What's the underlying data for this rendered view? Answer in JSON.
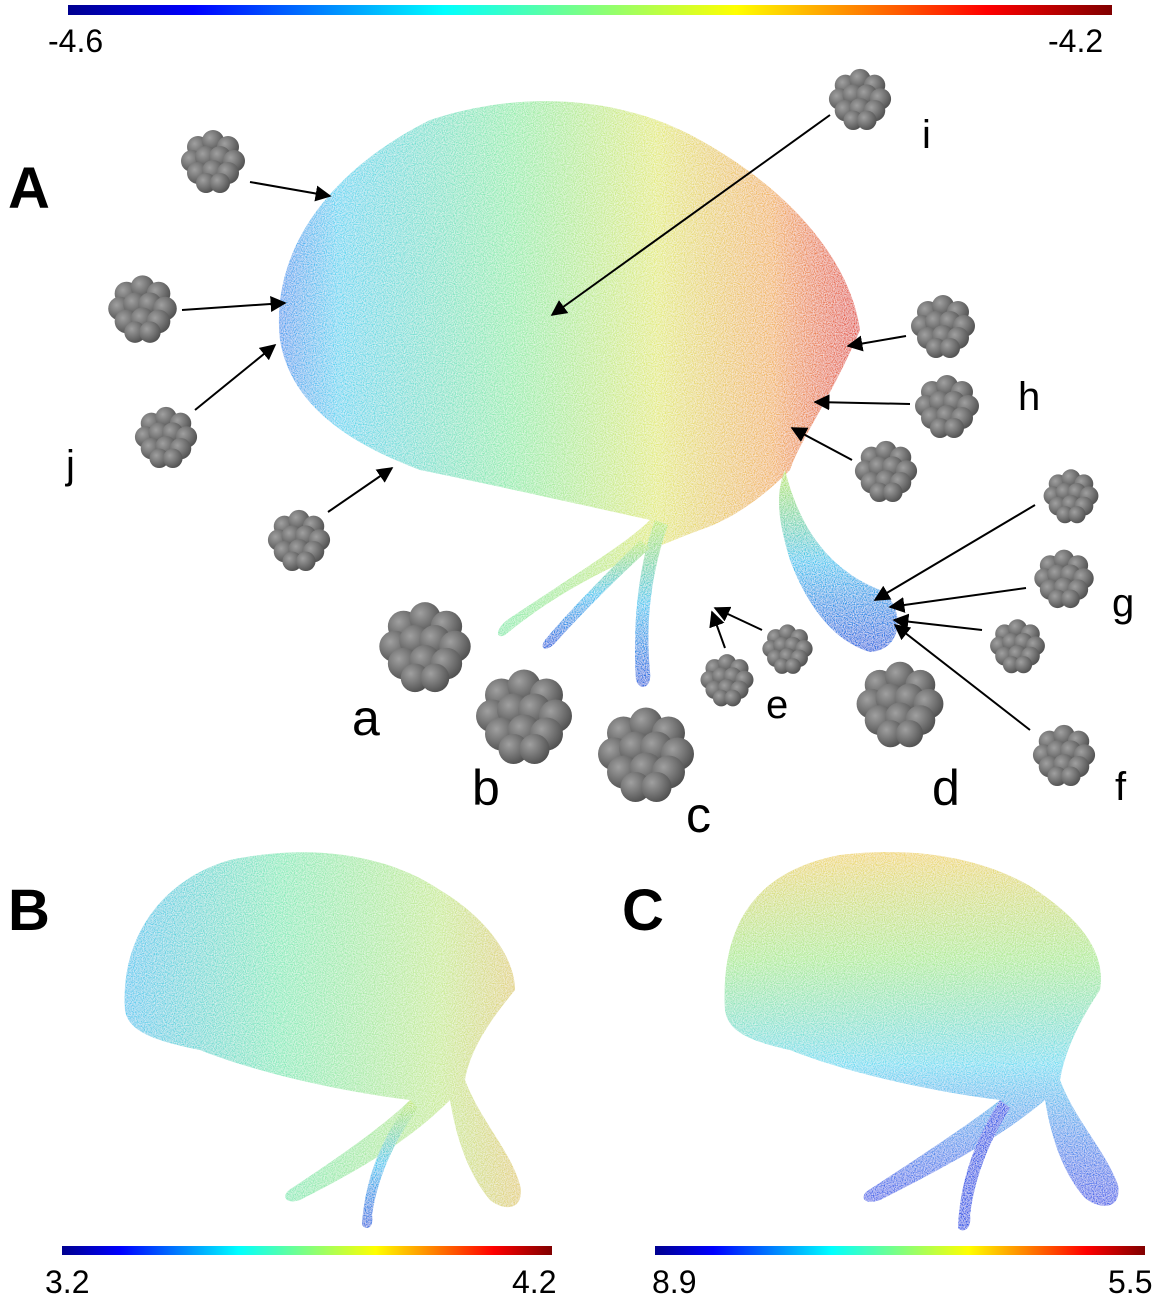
{
  "panels": [
    {
      "label": "A"
    },
    {
      "label": "B"
    },
    {
      "label": "C"
    }
  ],
  "colorbars": [
    {
      "min_label": "-4.6",
      "max_label": "-4.2"
    },
    {
      "min_label": "3.2",
      "max_label": "4.2"
    },
    {
      "min_label": "8.9",
      "max_label": "5.5"
    }
  ],
  "annotations": [
    "a",
    "b",
    "c",
    "d",
    "e",
    "f",
    "g",
    "h",
    "i",
    "j"
  ]
}
